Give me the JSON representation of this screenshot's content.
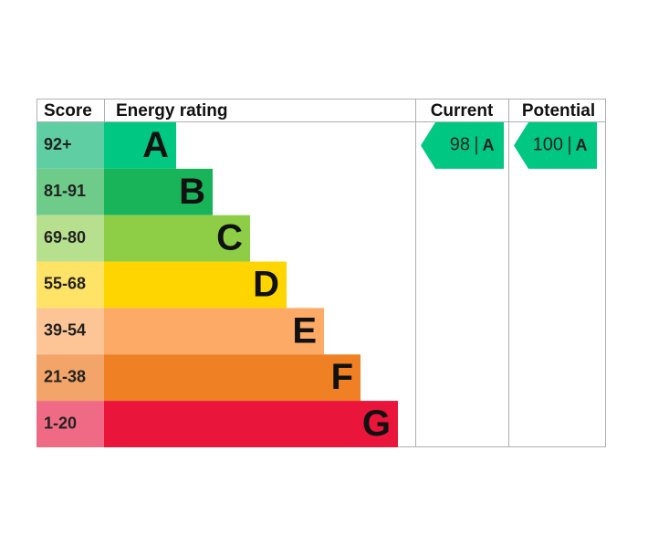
{
  "header": {
    "score": "Score",
    "energy_rating": "Energy rating",
    "current": "Current",
    "potential": "Potential"
  },
  "bands": [
    {
      "score": "92+",
      "letter": "A",
      "color": "#00c781",
      "score_color": "#5fcfa3"
    },
    {
      "score": "81-91",
      "letter": "B",
      "color": "#19b459",
      "score_color": "#6fcb8a"
    },
    {
      "score": "69-80",
      "letter": "C",
      "color": "#8dce46",
      "score_color": "#b6e08e"
    },
    {
      "score": "55-68",
      "letter": "D",
      "color": "#ffd500",
      "score_color": "#ffe366"
    },
    {
      "score": "39-54",
      "letter": "E",
      "color": "#fcaa65",
      "score_color": "#fdc596"
    },
    {
      "score": "21-38",
      "letter": "F",
      "color": "#ef8023",
      "score_color": "#f3a468"
    },
    {
      "score": "1-20",
      "letter": "G",
      "color": "#e9153b",
      "score_color": "#ef6b85"
    }
  ],
  "current": {
    "value": 98,
    "letter": "A"
  },
  "potential": {
    "value": 100,
    "letter": "A"
  }
}
